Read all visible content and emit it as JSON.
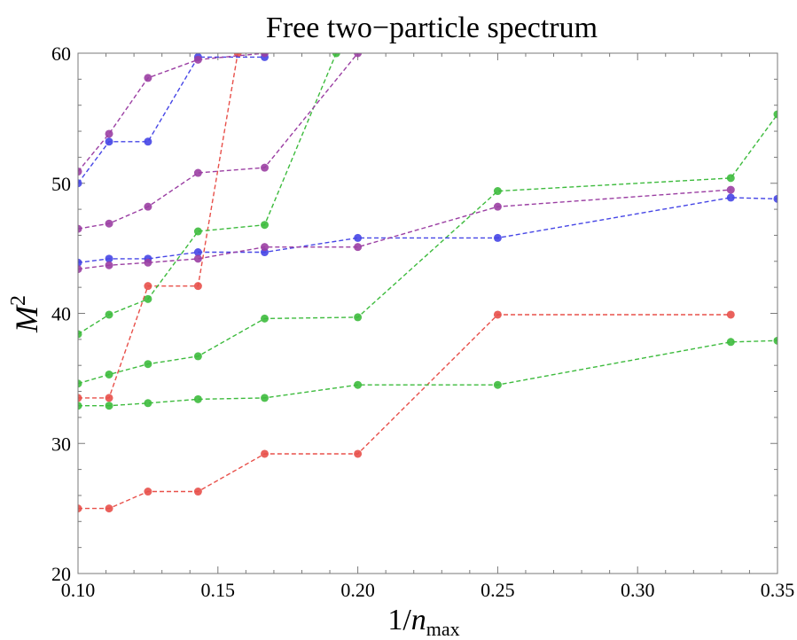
{
  "chart_data": {
    "type": "line",
    "title": "Free two−particle spectrum",
    "xlabel": "1/n_max",
    "xlabel_parts": {
      "prefix": "1/",
      "var": "n",
      "sub": "max"
    },
    "ylabel": "M^2",
    "ylabel_parts": {
      "var": "M",
      "sup": "2"
    },
    "xlim": [
      0.1,
      0.35
    ],
    "ylim": [
      20,
      60
    ],
    "grid": false,
    "xticks": [
      {
        "value": 0.1,
        "label": "0.10"
      },
      {
        "value": 0.15,
        "label": "0.15"
      },
      {
        "value": 0.2,
        "label": "0.20"
      },
      {
        "value": 0.25,
        "label": "0.25"
      },
      {
        "value": 0.3,
        "label": "0.30"
      },
      {
        "value": 0.35,
        "label": "0.35"
      }
    ],
    "yticks": [
      {
        "value": 20,
        "label": "20"
      },
      {
        "value": 30,
        "label": "30"
      },
      {
        "value": 40,
        "label": "40"
      },
      {
        "value": 50,
        "label": "50"
      },
      {
        "value": 60,
        "label": "60"
      }
    ],
    "series": [
      {
        "color": "#e8504a",
        "x": [
          0.1,
          0.1111,
          0.125,
          0.1429,
          0.1667,
          0.2,
          0.25,
          0.3333
        ],
        "y": [
          25.0,
          25.0,
          26.3,
          26.3,
          29.2,
          29.2,
          39.9,
          39.9
        ]
      },
      {
        "color": "#e8504a",
        "x": [
          0.1,
          0.1111,
          0.125,
          0.1429,
          0.1571
        ],
        "y": [
          33.5,
          33.5,
          42.1,
          42.1,
          60.0
        ]
      },
      {
        "color": "#3dbb3d",
        "x": [
          0.1,
          0.1111,
          0.125,
          0.1429,
          0.1667,
          0.2,
          0.25,
          0.3333,
          0.35
        ],
        "y": [
          32.9,
          32.9,
          33.1,
          33.4,
          33.5,
          34.5,
          34.5,
          37.8,
          37.9
        ]
      },
      {
        "color": "#3dbb3d",
        "x": [
          0.1,
          0.1111,
          0.125,
          0.1429,
          0.1667,
          0.2,
          0.25,
          0.3333,
          0.35
        ],
        "y": [
          34.6,
          35.3,
          36.1,
          36.7,
          39.6,
          39.7,
          49.4,
          50.4,
          55.3
        ]
      },
      {
        "color": "#3dbb3d",
        "x": [
          0.1,
          0.1111,
          0.125,
          0.1429,
          0.1667,
          0.1923
        ],
        "y": [
          38.4,
          39.9,
          41.1,
          46.3,
          46.8,
          60.0
        ]
      },
      {
        "color": "#4646e6",
        "x": [
          0.1,
          0.1111,
          0.125,
          0.1429,
          0.1667,
          0.2,
          0.25,
          0.3333,
          0.35
        ],
        "y": [
          43.9,
          44.2,
          44.2,
          44.7,
          44.7,
          45.8,
          45.8,
          48.9,
          48.8
        ]
      },
      {
        "color": "#4646e6",
        "x": [
          0.1,
          0.1111,
          0.125,
          0.1429,
          0.1667
        ],
        "y": [
          50.0,
          53.2,
          53.2,
          59.7,
          59.7
        ]
      },
      {
        "color": "#9b3fa3",
        "x": [
          0.1,
          0.1111,
          0.125,
          0.1429,
          0.1667,
          0.2,
          0.25,
          0.3333
        ],
        "y": [
          43.4,
          43.7,
          43.9,
          44.2,
          45.1,
          45.1,
          48.2,
          49.5
        ]
      },
      {
        "color": "#9b3fa3",
        "x": [
          0.1,
          0.1111,
          0.125,
          0.1429,
          0.1667,
          0.2
        ],
        "y": [
          46.5,
          46.9,
          48.2,
          50.8,
          51.2,
          60.0
        ]
      },
      {
        "color": "#9b3fa3",
        "x": [
          0.1,
          0.1111,
          0.125,
          0.1429,
          0.1667
        ],
        "y": [
          50.9,
          53.8,
          58.1,
          59.5,
          60.0
        ]
      }
    ]
  }
}
